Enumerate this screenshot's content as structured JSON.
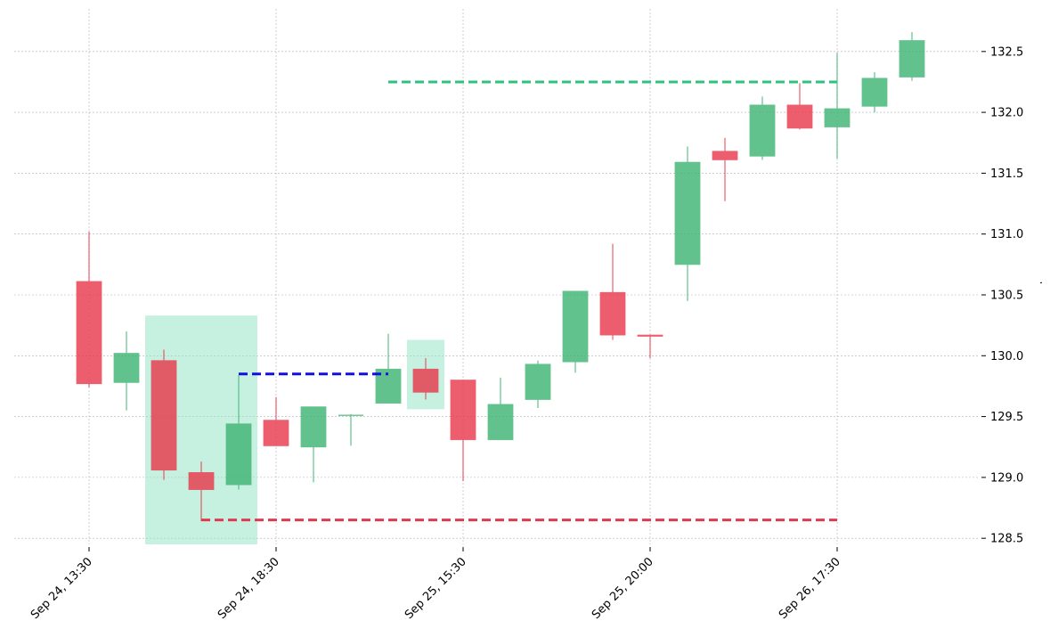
{
  "chart_data": {
    "type": "candlestick",
    "title": "",
    "xlabel": "",
    "ylabel": "",
    "ylim": [
      128.45,
      132.85
    ],
    "grid": true,
    "y_axis_side": "right",
    "x_tick_labels": [
      {
        "index": 0,
        "label": "Sep 24, 13:30"
      },
      {
        "index": 5,
        "label": "Sep 24, 18:30"
      },
      {
        "index": 10,
        "label": "Sep 25, 15:30"
      },
      {
        "index": 15,
        "label": "Sep 25, 20:00"
      },
      {
        "index": 20,
        "label": "Sep 26, 17:30"
      }
    ],
    "y_ticks": [
      128.5,
      129.0,
      129.5,
      130.0,
      130.5,
      131.0,
      131.5,
      132.0,
      132.5
    ],
    "colors": {
      "up": "#3cb371",
      "down": "#e8364a",
      "highlight_fill": "#8ee3c2",
      "support_line": "#e03a50",
      "resistance_line": "#2ec27e",
      "entry_line": "#1010e0"
    },
    "candles": [
      {
        "open": 130.61,
        "high": 131.02,
        "low": 129.74,
        "close": 129.77
      },
      {
        "open": 129.78,
        "high": 130.2,
        "low": 129.55,
        "close": 130.02
      },
      {
        "open": 129.96,
        "high": 130.05,
        "low": 128.98,
        "close": 129.06
      },
      {
        "open": 129.04,
        "high": 129.13,
        "low": 128.64,
        "close": 128.9
      },
      {
        "open": 128.94,
        "high": 129.84,
        "low": 128.9,
        "close": 129.44
      },
      {
        "open": 129.47,
        "high": 129.66,
        "low": 129.26,
        "close": 129.26
      },
      {
        "open": 129.25,
        "high": 129.58,
        "low": 128.96,
        "close": 129.58
      },
      {
        "open": 129.51,
        "high": 129.52,
        "low": 129.26,
        "close": 129.51
      },
      {
        "open": 129.61,
        "high": 130.18,
        "low": 129.61,
        "close": 129.89
      },
      {
        "open": 129.89,
        "high": 129.98,
        "low": 129.64,
        "close": 129.7
      },
      {
        "open": 129.8,
        "high": 129.8,
        "low": 128.97,
        "close": 129.31
      },
      {
        "open": 129.31,
        "high": 129.82,
        "low": 129.31,
        "close": 129.6
      },
      {
        "open": 129.64,
        "high": 129.96,
        "low": 129.57,
        "close": 129.93
      },
      {
        "open": 129.95,
        "high": 130.53,
        "low": 129.86,
        "close": 130.53
      },
      {
        "open": 130.52,
        "high": 130.92,
        "low": 130.13,
        "close": 130.17
      },
      {
        "open": 130.17,
        "high": 130.17,
        "low": 129.98,
        "close": 130.16
      },
      {
        "open": 130.75,
        "high": 131.72,
        "low": 130.45,
        "close": 131.59
      },
      {
        "open": 131.68,
        "high": 131.79,
        "low": 131.27,
        "close": 131.61
      },
      {
        "open": 131.64,
        "high": 132.13,
        "low": 131.61,
        "close": 132.06
      },
      {
        "open": 132.06,
        "high": 132.24,
        "low": 131.86,
        "close": 131.87
      },
      {
        "open": 131.88,
        "high": 132.49,
        "low": 131.62,
        "close": 132.03
      },
      {
        "open": 132.05,
        "high": 132.33,
        "low": 132.0,
        "close": 132.28
      },
      {
        "open": 132.29,
        "high": 132.66,
        "low": 132.26,
        "close": 132.59
      }
    ],
    "highlight_zones": [
      {
        "x_start": 1.5,
        "x_end": 4.5,
        "y_low": 128.45,
        "y_high": 130.33
      },
      {
        "x_start": 8.5,
        "x_end": 9.5,
        "y_low": 129.56,
        "y_high": 130.13
      }
    ],
    "horizontal_lines": [
      {
        "role": "entry",
        "y": 129.85,
        "x_start": 4,
        "x_end": 8
      },
      {
        "role": "stop",
        "y": 128.65,
        "x_start": 3,
        "x_end": 20
      },
      {
        "role": "target",
        "y": 132.25,
        "x_start": 8,
        "x_end": 20
      }
    ]
  }
}
